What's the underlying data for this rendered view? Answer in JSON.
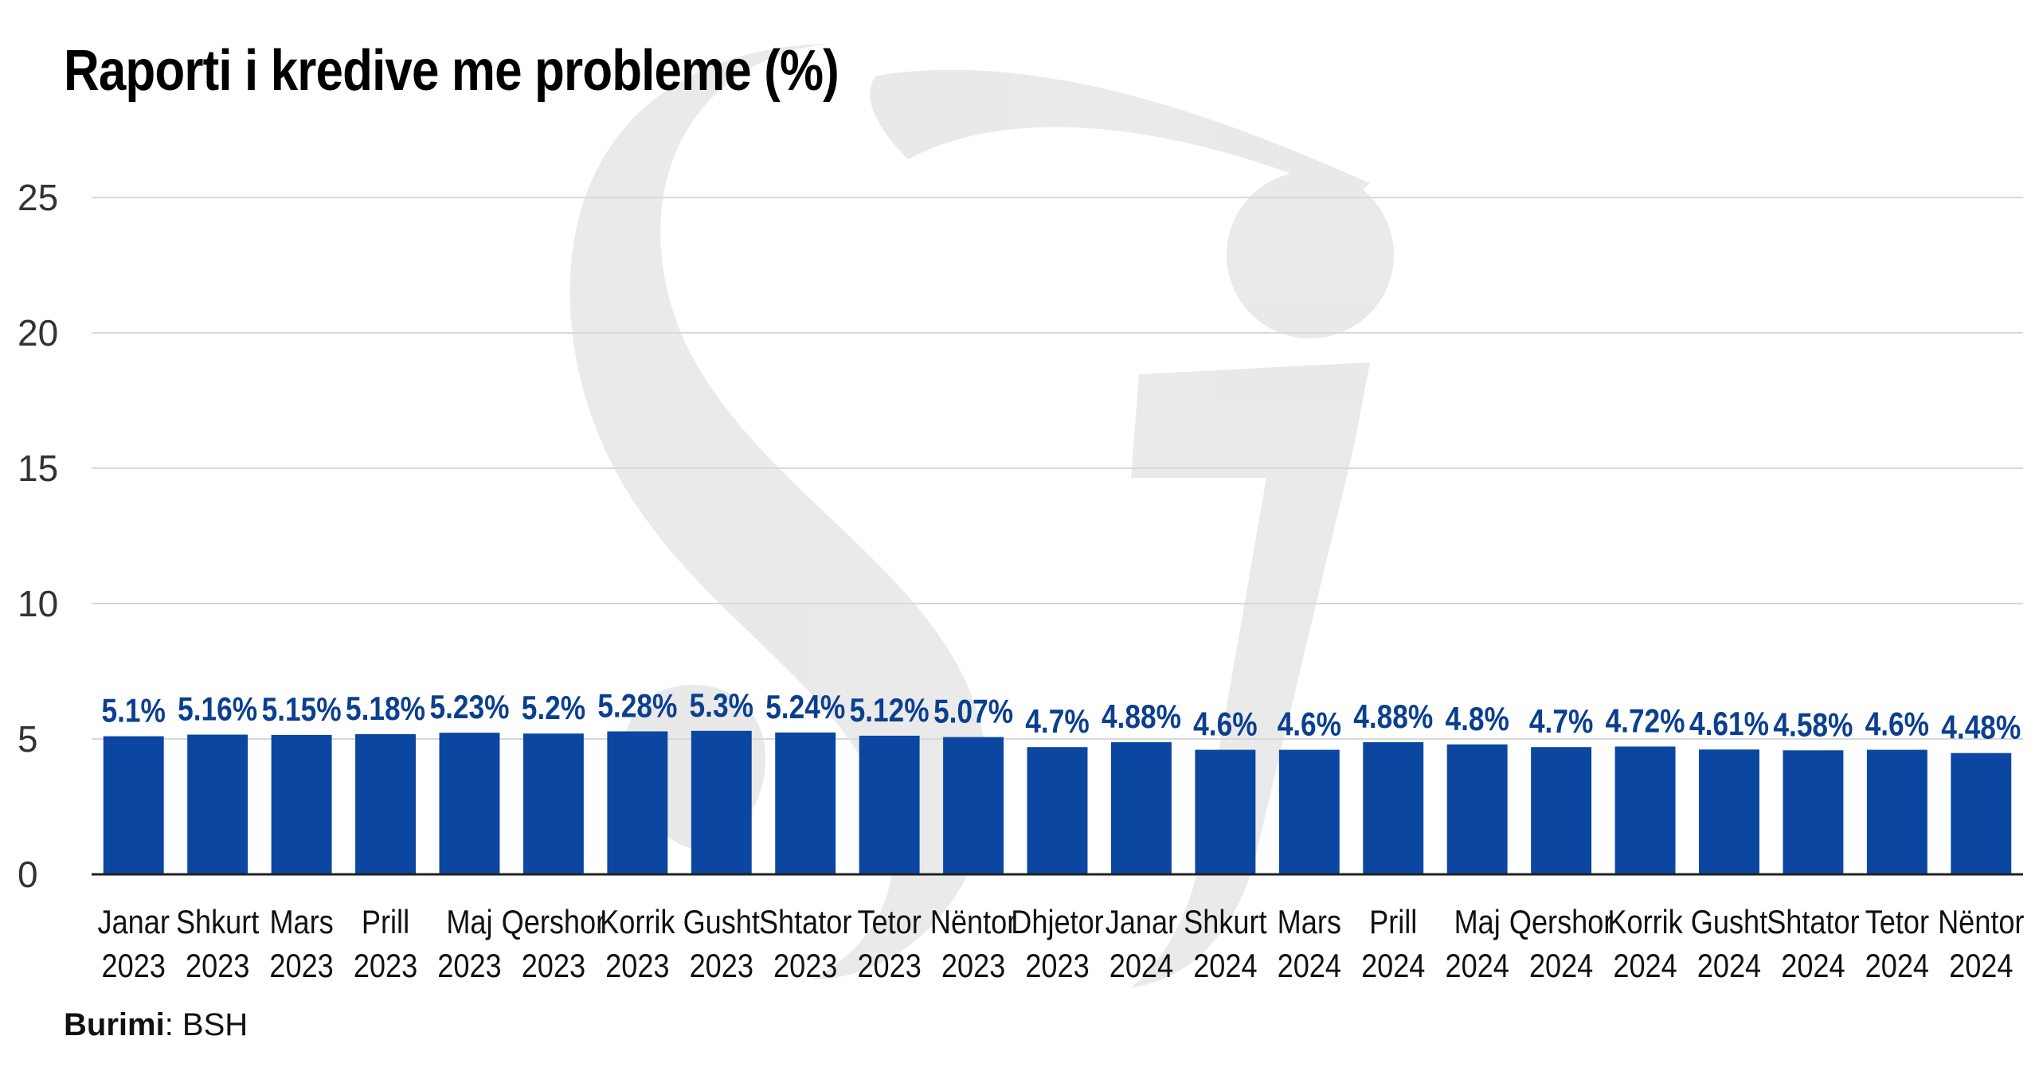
{
  "colors": {
    "bar": "#0b47a1",
    "label": "#0b3f8f",
    "grid": "#d9d9d9",
    "axis": "#222222",
    "watermark": "#e6e6e6"
  },
  "watermark": {
    "icon": "logo-watermark-icon"
  },
  "source": {
    "label": "Burimi",
    "value": "BSH"
  },
  "chart_data": {
    "type": "bar",
    "title": "Raporti i kredive me probleme (%)",
    "xlabel": "",
    "ylabel": "",
    "ylim": [
      0,
      25
    ],
    "yticks": [
      0,
      5,
      10,
      15,
      20,
      25
    ],
    "grid": true,
    "legend": "none",
    "categories": [
      [
        "Janar",
        "2023"
      ],
      [
        "Shkurt",
        "2023"
      ],
      [
        "Mars",
        "2023"
      ],
      [
        "Prill",
        "2023"
      ],
      [
        "Maj",
        "2023"
      ],
      [
        "Qershor",
        "2023"
      ],
      [
        "Korrik",
        "2023"
      ],
      [
        "Gusht",
        "2023"
      ],
      [
        "Shtator",
        "2023"
      ],
      [
        "Tetor",
        "2023"
      ],
      [
        "Nëntor",
        "2023"
      ],
      [
        "Dhjetor",
        "2023"
      ],
      [
        "Janar",
        "2024"
      ],
      [
        "Shkurt",
        "2024"
      ],
      [
        "Mars",
        "2024"
      ],
      [
        "Prill",
        "2024"
      ],
      [
        "Maj",
        "2024"
      ],
      [
        "Qershor",
        "2024"
      ],
      [
        "Korrik",
        "2024"
      ],
      [
        "Gusht",
        "2024"
      ],
      [
        "Shtator",
        "2024"
      ],
      [
        "Tetor",
        "2024"
      ],
      [
        "Nëntor",
        "2024"
      ]
    ],
    "values": [
      5.1,
      5.16,
      5.15,
      5.18,
      5.23,
      5.2,
      5.28,
      5.3,
      5.24,
      5.12,
      5.07,
      4.7,
      4.88,
      4.6,
      4.6,
      4.88,
      4.8,
      4.7,
      4.72,
      4.61,
      4.58,
      4.6,
      4.48
    ],
    "data_labels": [
      "5.1%",
      "5.16%",
      "5.15%",
      "5.18%",
      "5.23%",
      "5.2%",
      "5.28%",
      "5.3%",
      "5.24%",
      "5.12%",
      "5.07%",
      "4.7%",
      "4.88%",
      "4.6%",
      "4.6%",
      "4.88%",
      "4.8%",
      "4.7%",
      "4.72%",
      "4.61%",
      "4.58%",
      "4.6%",
      "4.48%"
    ]
  }
}
